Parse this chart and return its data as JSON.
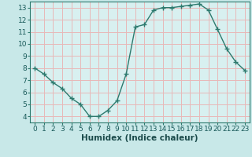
{
  "x": [
    0,
    1,
    2,
    3,
    4,
    5,
    6,
    7,
    8,
    9,
    10,
    11,
    12,
    13,
    14,
    15,
    16,
    17,
    18,
    19,
    20,
    21,
    22,
    23
  ],
  "y": [
    8.0,
    7.5,
    6.8,
    6.3,
    5.5,
    5.0,
    4.0,
    4.0,
    4.5,
    5.3,
    7.5,
    11.4,
    11.6,
    12.8,
    13.0,
    13.0,
    13.1,
    13.2,
    13.3,
    12.8,
    11.2,
    9.6,
    8.5,
    7.8
  ],
  "line_color": "#2d7a6e",
  "marker_color": "#2d7a6e",
  "bg_color": "#c8e8e8",
  "plot_bg_color": "#d8f0f0",
  "grid_color": "#e8b8b8",
  "xlabel": "Humidex (Indice chaleur)",
  "xlim": [
    -0.5,
    23.5
  ],
  "ylim": [
    3.5,
    13.5
  ],
  "yticks": [
    4,
    5,
    6,
    7,
    8,
    9,
    10,
    11,
    12,
    13
  ],
  "xticks": [
    0,
    1,
    2,
    3,
    4,
    5,
    6,
    7,
    8,
    9,
    10,
    11,
    12,
    13,
    14,
    15,
    16,
    17,
    18,
    19,
    20,
    21,
    22,
    23
  ],
  "xtick_labels": [
    "0",
    "1",
    "2",
    "3",
    "4",
    "5",
    "6",
    "7",
    "8",
    "9",
    "10",
    "11",
    "12",
    "13",
    "14",
    "15",
    "16",
    "17",
    "18",
    "19",
    "20",
    "21",
    "22",
    "23"
  ],
  "tick_label_size": 6.5,
  "xlabel_size": 7.5,
  "axis_color": "#2d7a6e"
}
